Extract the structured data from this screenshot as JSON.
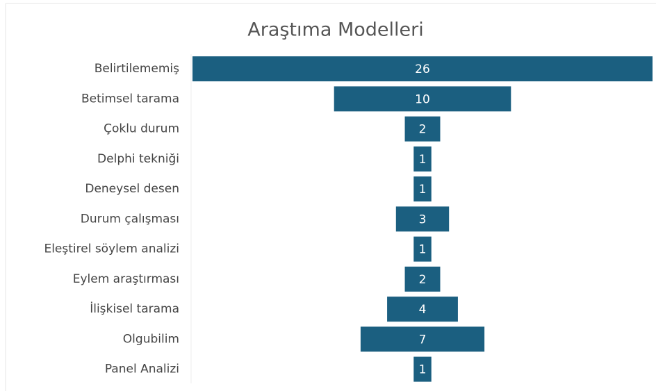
{
  "chart_data": {
    "type": "funnel",
    "title": "Araştıma Modelleri",
    "categories": [
      "Belirtilememiş",
      "Betimsel tarama",
      "Çoklu durum",
      "Delphi tekniği",
      "Deneysel desen",
      "Durum çalışması",
      "Eleştirel söylem analizi",
      "Eylem araştırması",
      "İlişkisel tarama",
      "Olgubilim",
      "Panel Analizi"
    ],
    "values": [
      26,
      10,
      2,
      1,
      1,
      3,
      1,
      2,
      4,
      7,
      1
    ],
    "color": "#1b5f80"
  }
}
